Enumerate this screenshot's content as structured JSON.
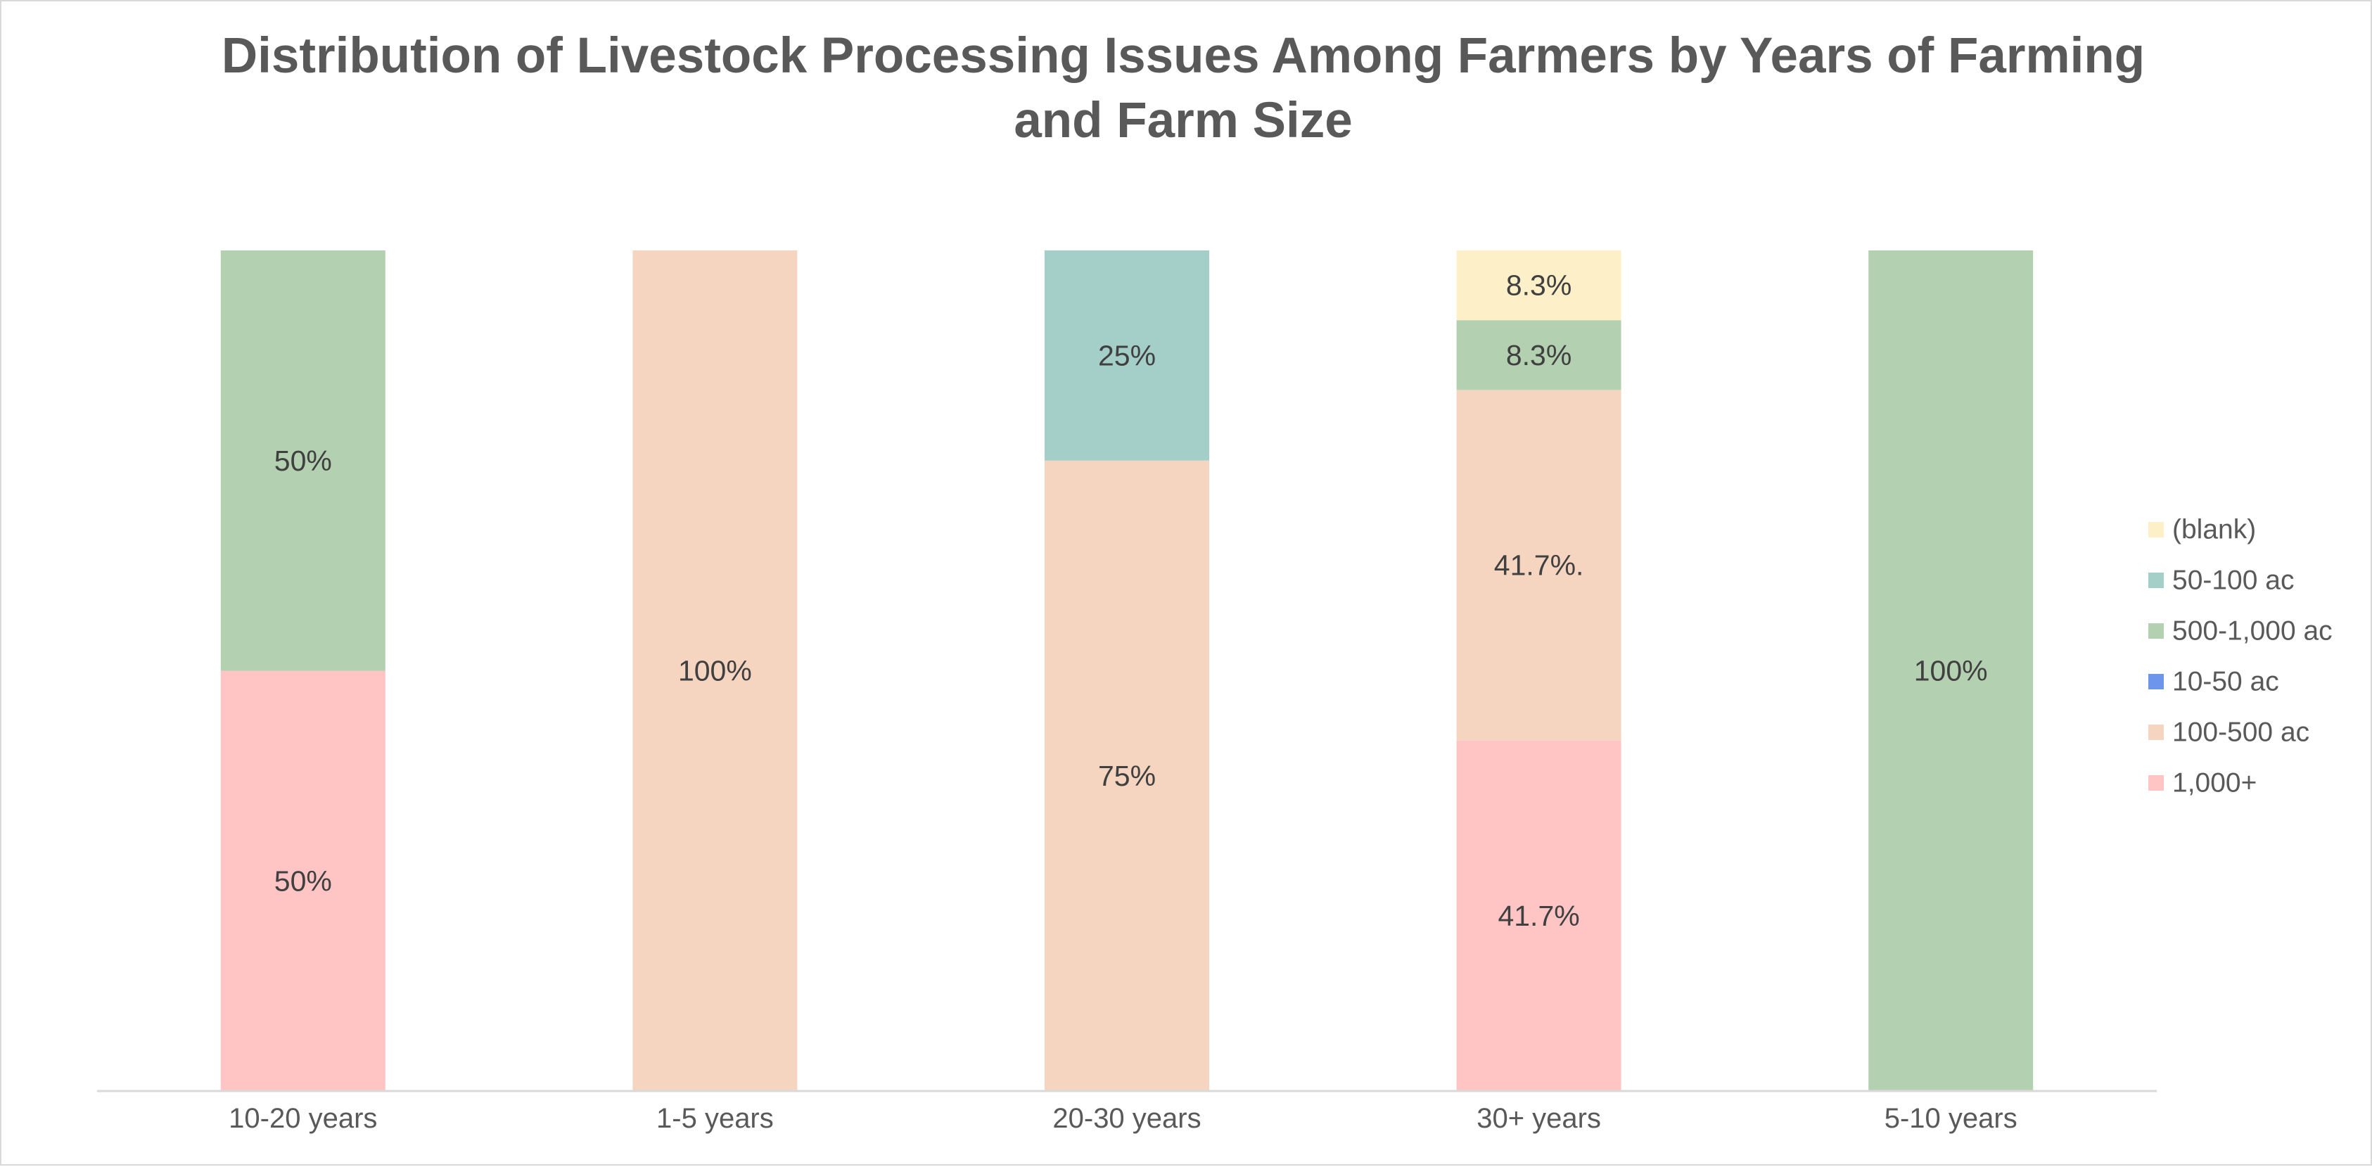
{
  "chart_data": {
    "type": "bar",
    "stacked": true,
    "percent_stacked": true,
    "title": "Distribution of Livestock Processing Issues Among Farmers by Years of Farming and Farm Size",
    "xlabel": "",
    "ylabel": "",
    "ylim": [
      0,
      100
    ],
    "grid": false,
    "legend_position": "right",
    "categories": [
      "10-20 years",
      "1-5 years",
      "20-30 years",
      "30+ years",
      "5-10 years"
    ],
    "series": [
      {
        "name": "1,000+",
        "color": "#ffc5c5",
        "values": [
          50,
          0,
          0,
          41.7,
          0
        ],
        "labels": [
          "50%",
          "",
          "",
          "41.7%",
          ""
        ]
      },
      {
        "name": "100-500 ac",
        "color": "#f5d5c0",
        "values": [
          0,
          100,
          75,
          41.7,
          0
        ],
        "labels": [
          "",
          "100%",
          "75%",
          "41.7%.",
          ""
        ]
      },
      {
        "name": "10-50 ac",
        "color": "#6d95ec",
        "values": [
          0,
          0,
          0,
          0,
          0
        ],
        "labels": [
          "",
          "",
          "",
          "",
          ""
        ]
      },
      {
        "name": "500-1,000 ac",
        "color": "#b3d1b1",
        "values": [
          50,
          0,
          0,
          8.3,
          100
        ],
        "labels": [
          "50%",
          "",
          "",
          "8.3%",
          "100%"
        ]
      },
      {
        "name": "50-100 ac",
        "color": "#a4cec8",
        "values": [
          0,
          0,
          25,
          0,
          0
        ],
        "labels": [
          "",
          "",
          "25%",
          "",
          ""
        ]
      },
      {
        "name": "(blank)",
        "color": "#fdf0c9",
        "values": [
          0,
          0,
          0,
          8.3,
          0
        ],
        "labels": [
          "",
          "",
          "",
          "8.3%",
          ""
        ]
      }
    ],
    "legend_order": [
      "(blank)",
      "50-100 ac",
      "500-1,000 ac",
      "10-50 ac",
      "100-500 ac",
      "1,000+"
    ],
    "axis_color": "#d9d9d9"
  }
}
